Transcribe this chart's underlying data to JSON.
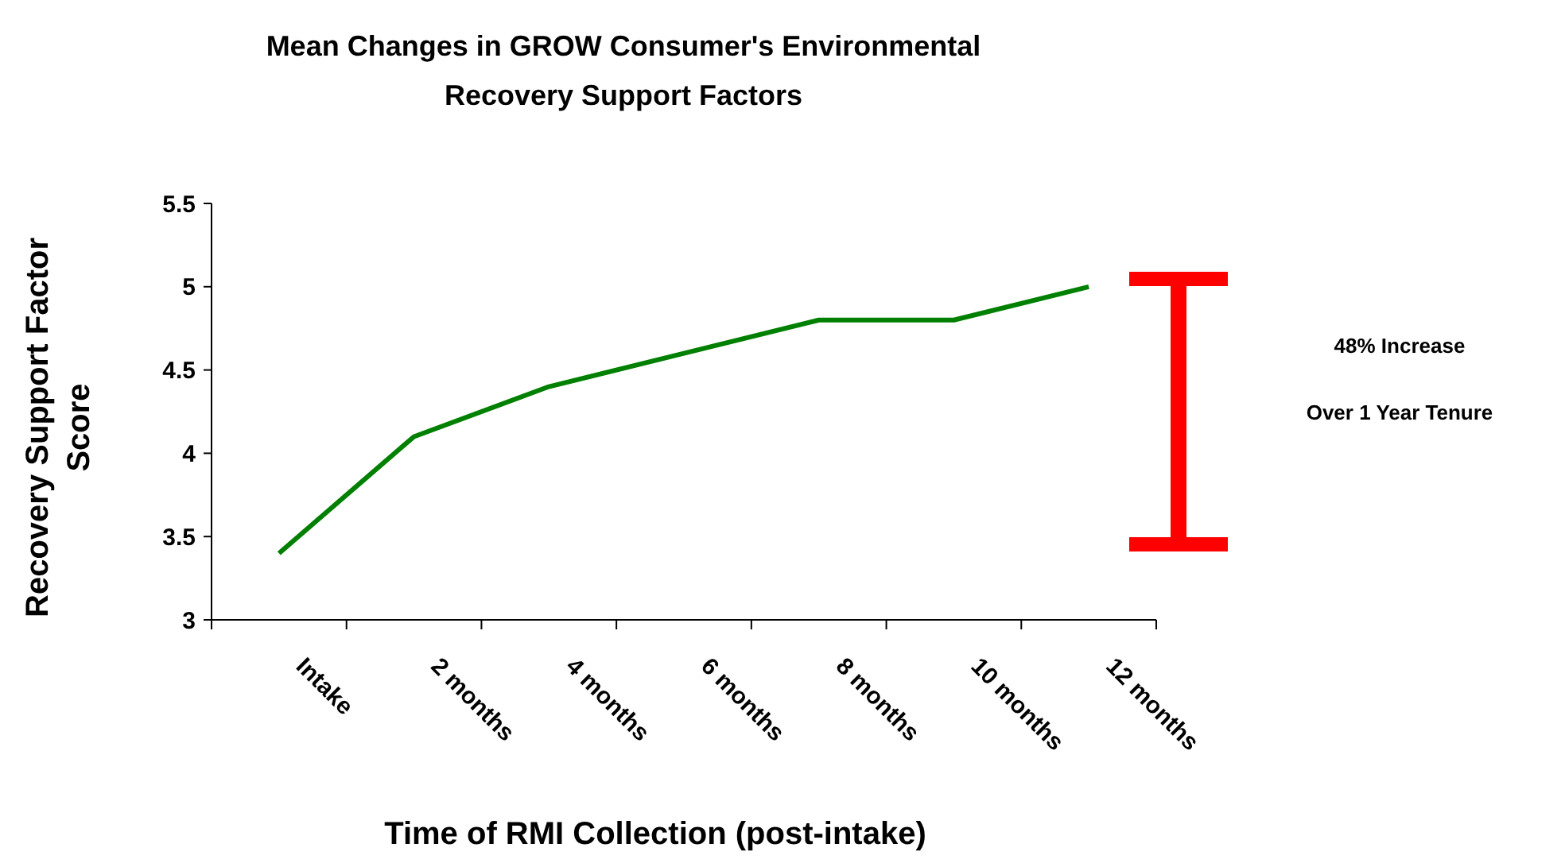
{
  "chart_data": {
    "type": "line",
    "title": "Mean Changes in GROW Consumer's Environmental Recovery Support Factors",
    "xlabel": "Time of RMI Collection (post-intake)",
    "ylabel": "Recovery Support Factor Score",
    "categories": [
      "Intake",
      "2 months",
      "4 months",
      "6 months",
      "8 months",
      "10 months",
      "12 months"
    ],
    "series": [
      {
        "color": "#008000",
        "values": [
          3.4,
          4.1,
          4.4,
          4.6,
          4.8,
          4.8,
          5.0
        ]
      }
    ],
    "ylim": [
      3,
      5.5
    ],
    "yticks": [
      3,
      3.5,
      4,
      4.5,
      5,
      5.5
    ],
    "grid": false,
    "marker": "none",
    "line_style": "solid",
    "annotations": [
      "48% Increase",
      "Over 1 Year Tenure"
    ]
  }
}
